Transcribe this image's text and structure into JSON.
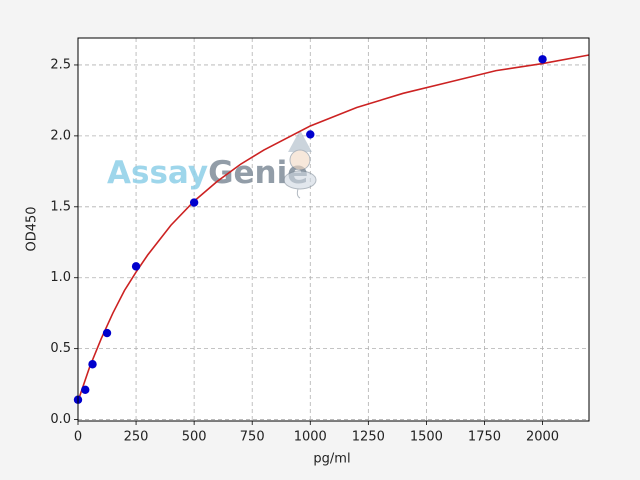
{
  "chart_data": {
    "type": "scatter",
    "xlabel": "pg/ml",
    "ylabel": "OD450",
    "watermark": [
      "Assay",
      "Genie"
    ],
    "xlim": [
      0,
      2200
    ],
    "ylim": [
      -0.01,
      2.69
    ],
    "xticks": [
      0,
      250,
      500,
      750,
      1000,
      1250,
      1500,
      1750,
      2000
    ],
    "yticks": [
      {
        "value": 0,
        "label": "0.0"
      },
      0.5,
      {
        "value": 1,
        "label": "1.0"
      },
      1.5,
      {
        "value": 2,
        "label": "2.0"
      },
      2.5
    ],
    "grid": true,
    "series": [
      {
        "type": "scatter",
        "color": "#0000cd",
        "x": [
          0,
          31.25,
          62.5,
          125,
          250,
          500,
          1000,
          2000
        ],
        "values": [
          0.14,
          0.21,
          0.39,
          0.61,
          1.08,
          1.53,
          2.01,
          2.54
        ]
      },
      {
        "type": "line",
        "color": "#cc2222",
        "x": [
          0,
          50,
          100,
          150,
          200,
          250,
          300,
          400,
          500,
          600,
          700,
          800,
          1000,
          1200,
          1400,
          1600,
          1800,
          2000,
          2200
        ],
        "values": [
          0.13,
          0.37,
          0.57,
          0.75,
          0.91,
          1.04,
          1.16,
          1.37,
          1.54,
          1.68,
          1.8,
          1.9,
          2.07,
          2.2,
          2.3,
          2.38,
          2.46,
          2.51,
          2.57
        ]
      }
    ]
  }
}
